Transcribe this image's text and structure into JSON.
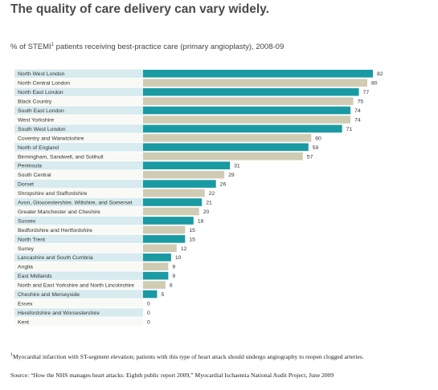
{
  "title": "The quality of care delivery can vary widely.",
  "subtitle_main": "% of STEMI",
  "subtitle_sup": "1",
  "subtitle_rest": " patients receiving best-practice care (primary angioplasty), 2008-09",
  "footnote_sup": "1",
  "footnote": "Myocardial infarction with ST-segment elevation; patients with this type of heart attack should undergo angiography to reopen clogged arteries.",
  "source": "Source: “How the NHS manages heart attacks: Eighth public report 2009,” Myocardial Ischaemia National Audit Project, June 2009",
  "colors": {
    "bar_dark": "#1a9aa3",
    "bar_light": "#cfccb3",
    "row_blue": "#d8ebef",
    "row_white": "#f9f9f5"
  },
  "chart_data": {
    "type": "bar",
    "orientation": "horizontal",
    "xlim": [
      0,
      82
    ],
    "grid": false,
    "categories": [
      "North West London",
      "North Central London",
      "North East London",
      "Black Country",
      "South East London",
      "West Yorkshire",
      "South West London",
      "Coventry and Warwickshire",
      "North of England",
      "Birmingham, Sandwell, and Solihull",
      "Peninsula",
      "South Central",
      "Dorset",
      "Shropshire and Staffordshire",
      "Avon, Gloucestershire, Wiltshire, and Somerset",
      "Greater Manchester and Cheshire",
      "Sussex",
      "Bedfordshire and Hertfordshire",
      "North Trent",
      "Surrey",
      "Lancashire and South Cumbria",
      "Anglia",
      "East Midlands",
      "North and East Yorkshire and North Lincolnshire",
      "Cheshire and Merseyside",
      "Essex",
      "Herefordshire and Worcestershire",
      "Kent"
    ],
    "values": [
      82,
      80,
      77,
      75,
      74,
      74,
      71,
      60,
      59,
      57,
      31,
      29,
      26,
      22,
      21,
      20,
      18,
      15,
      15,
      12,
      10,
      9,
      9,
      8,
      5,
      0,
      0,
      0
    ],
    "value_labels": [
      "82",
      "80",
      "77",
      "75",
      "74",
      "74",
      "71",
      "60",
      "59",
      "57",
      "31",
      "29",
      "26",
      "22",
      "21",
      "20",
      "18",
      "15",
      "15",
      "12",
      "10",
      "9",
      "9",
      "8",
      "5",
      "0",
      "0",
      "0"
    ]
  }
}
